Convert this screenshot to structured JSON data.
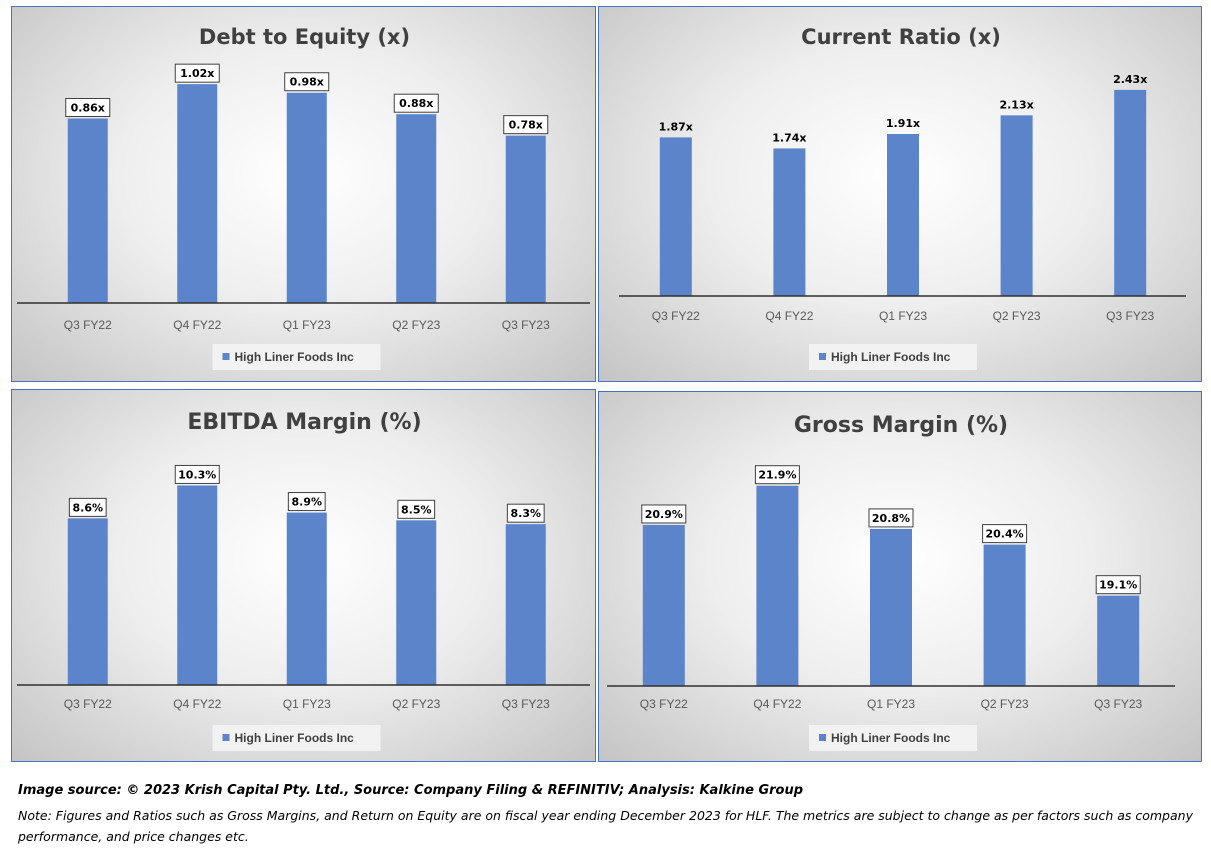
{
  "chart_data": [
    {
      "type": "bar",
      "title": "Debt to Equity (x)",
      "categories": [
        "Q3 FY22",
        "Q4 FY22",
        "Q1 FY23",
        "Q2 FY23",
        "Q3 FY23"
      ],
      "values": [
        0.86,
        1.02,
        0.98,
        0.88,
        0.78
      ],
      "data_labels": [
        "0.86x",
        "1.02x",
        "0.98x",
        "0.88x",
        "0.78x"
      ],
      "legend": "High Liner Foods Inc",
      "ylim": [
        0,
        1.1
      ],
      "label_boxed": true,
      "color": "#5b84cb"
    },
    {
      "type": "bar",
      "title": "Current Ratio (x)",
      "categories": [
        "Q3 FY22",
        "Q4 FY22",
        "Q1 FY23",
        "Q2 FY23",
        "Q3 FY23"
      ],
      "values": [
        1.87,
        1.74,
        1.91,
        2.13,
        2.43
      ],
      "data_labels": [
        "1.87x",
        "1.74x",
        "1.91x",
        "2.13x",
        "2.43x"
      ],
      "legend": "High Liner Foods Inc",
      "ylim": [
        0,
        2.7
      ],
      "label_boxed": false,
      "color": "#5b84cb"
    },
    {
      "type": "bar",
      "title": "EBITDA Margin (%)",
      "categories": [
        "Q3 FY22",
        "Q4 FY22",
        "Q1 FY23",
        "Q2 FY23",
        "Q3 FY23"
      ],
      "values": [
        8.6,
        10.3,
        8.9,
        8.5,
        8.3
      ],
      "data_labels": [
        "8.6%",
        "10.3%",
        "8.9%",
        "8.5%",
        "8.3%"
      ],
      "legend": "High Liner Foods Inc",
      "ylim": [
        0,
        11.2
      ],
      "label_boxed": true,
      "color": "#5b84cb"
    },
    {
      "type": "bar",
      "title": "Gross Margin (%)",
      "categories": [
        "Q3 FY22",
        "Q4 FY22",
        "Q1 FY23",
        "Q2 FY23",
        "Q3 FY23"
      ],
      "values": [
        20.9,
        21.9,
        20.8,
        20.4,
        19.1
      ],
      "data_labels": [
        "20.9%",
        "21.9%",
        "20.8%",
        "20.4%",
        "19.1%"
      ],
      "legend": "High Liner Foods Inc",
      "ylim": [
        16.8,
        22.3
      ],
      "label_boxed": true,
      "color": "#5b84cb"
    }
  ],
  "footer": {
    "source": "Image source: © 2023 Krish Capital Pty. Ltd., Source: Company Filing & REFINITIV; Analysis: Kalkine Group",
    "note": "Note: Figures and Ratios such as  Gross Margins, and Return on Equity are on fiscal year ending  December  2023  for HLF. The metrics are subject to change as per factors such as company performance, and price changes etc."
  }
}
